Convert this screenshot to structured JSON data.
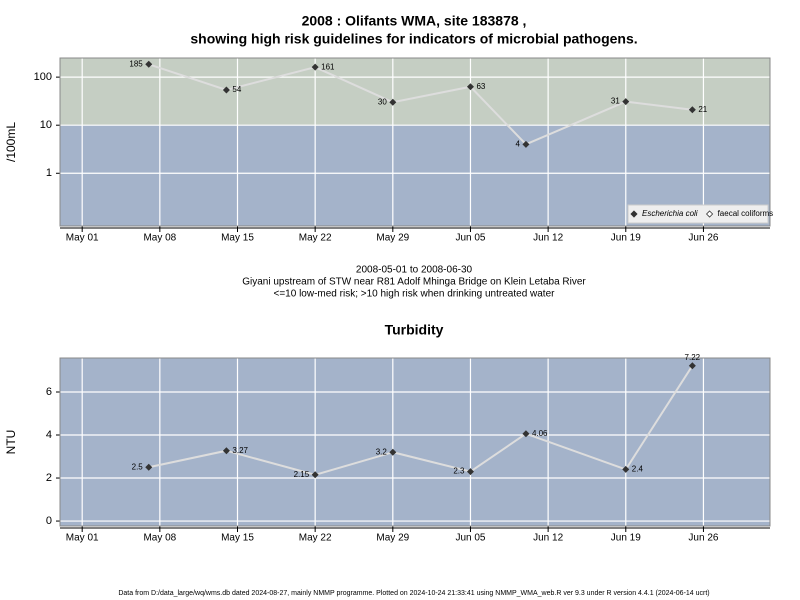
{
  "chart_data": [
    {
      "type": "line",
      "title": [
        "2008 : Olifants WMA, site 183878 ,",
        "showing high risk guidelines for indicators of microbial pathogens."
      ],
      "ylabel": "/100mL",
      "log_scale": true,
      "grid": true,
      "x": [
        "2008-05-07",
        "2008-05-14",
        "2008-05-22",
        "2008-05-29",
        "2008-06-05",
        "2008-06-10",
        "2008-06-19",
        "2008-06-25"
      ],
      "series": [
        {
          "name": "Escherichia coli",
          "color": "#333333",
          "line_color": "#dddddd",
          "values": [
            185,
            54,
            161,
            30,
            63,
            4,
            31,
            21
          ]
        },
        {
          "name": "faecal coliforms",
          "color": "#333333",
          "line_color": "#dddddd",
          "values": [
            null,
            null,
            null,
            null,
            null,
            null,
            null,
            null
          ]
        }
      ],
      "threshold": 10,
      "high_color": "#c5cec3",
      "low_color": "#a4b3ca",
      "xlim": [
        "2008-04-29",
        "2008-07-02"
      ],
      "xticks": [
        {
          "value": "2008-05-01",
          "label": "May 01"
        },
        {
          "value": "2008-05-08",
          "label": "May 08"
        },
        {
          "value": "2008-05-15",
          "label": "May 15"
        },
        {
          "value": "2008-05-22",
          "label": "May 22"
        },
        {
          "value": "2008-05-29",
          "label": "May 29"
        },
        {
          "value": "2008-06-05",
          "label": "Jun 05"
        },
        {
          "value": "2008-06-12",
          "label": "Jun 12"
        },
        {
          "value": "2008-06-19",
          "label": "Jun 19"
        },
        {
          "value": "2008-06-26",
          "label": "Jun 26"
        }
      ],
      "ylim": [
        0.08,
        250
      ],
      "yticks": [
        1,
        10,
        100
      ],
      "legend": "bottom-right",
      "caption": [
        "2008-05-01 to 2008-06-30",
        "Giyani upstream of STW near R81 Adolf Mhinga Bridge on Klein Letaba River",
        "<=10 low-med risk; >10 high risk when drinking untreated water"
      ]
    },
    {
      "type": "line",
      "title": [
        "Turbidity"
      ],
      "ylabel": "NTU",
      "log_scale": false,
      "grid": true,
      "x": [
        "2008-05-07",
        "2008-05-14",
        "2008-05-22",
        "2008-05-29",
        "2008-06-05",
        "2008-06-10",
        "2008-06-19",
        "2008-06-25"
      ],
      "series": [
        {
          "name": "Turbidity",
          "color": "#333333",
          "line_color": "#dddddd",
          "values": [
            2.5,
            3.27,
            2.15,
            3.2,
            2.3,
            4.06,
            2.4,
            7.22
          ]
        }
      ],
      "low_color": "#a4b3ca",
      "xlim": [
        "2008-04-29",
        "2008-07-02"
      ],
      "xticks": [
        {
          "value": "2008-05-01",
          "label": "May 01"
        },
        {
          "value": "2008-05-08",
          "label": "May 08"
        },
        {
          "value": "2008-05-15",
          "label": "May 15"
        },
        {
          "value": "2008-05-22",
          "label": "May 22"
        },
        {
          "value": "2008-05-29",
          "label": "May 29"
        },
        {
          "value": "2008-06-05",
          "label": "Jun 05"
        },
        {
          "value": "2008-06-12",
          "label": "Jun 12"
        },
        {
          "value": "2008-06-19",
          "label": "Jun 19"
        },
        {
          "value": "2008-06-26",
          "label": "Jun 26"
        }
      ],
      "ylim": [
        -0.23,
        7.58
      ],
      "yticks": [
        0,
        2,
        4,
        6
      ]
    }
  ],
  "footer": "Data from D:/data_large/wq/wms.db dated 2024-08-27, mainly NMMP programme. Plotted on 2024-10-24 21:33:41 using NMMP_WMA_web.R ver 9.3 under R version 4.4.1 (2024-06-14 ucrt)"
}
